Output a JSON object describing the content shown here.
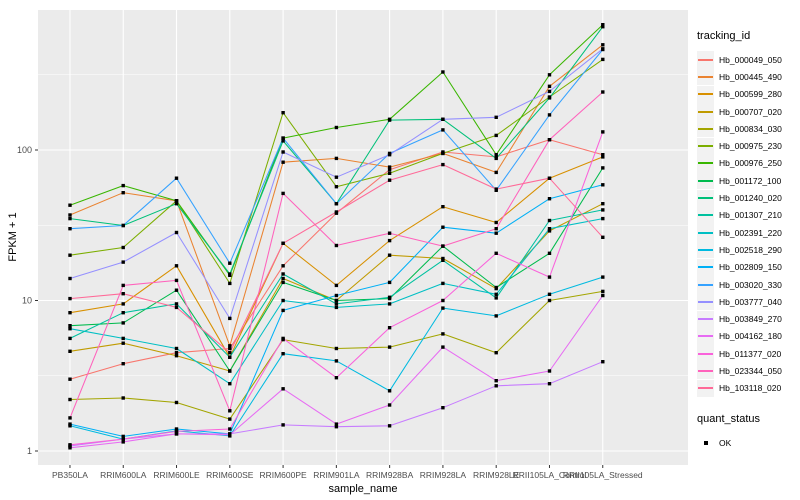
{
  "chart_data": {
    "type": "line",
    "title": "",
    "xlabel": "sample_name",
    "ylabel": "FPKM + 1",
    "y_scale": "log10",
    "y_ticks": [
      1,
      10,
      100
    ],
    "y_minor_ticks": [
      3.162,
      31.62,
      316.2
    ],
    "ylim": [
      1,
      750
    ],
    "grid": "on",
    "legend_position": "right",
    "legend_title": "tracking_id",
    "panel_bg": "#EBEBEB",
    "grid_color": "#FFFFFF",
    "axis_text_color": "#4D4D4D",
    "point_color": "#000000",
    "point_shape": "square",
    "categories": [
      "PB350LA",
      "RRIM600LA",
      "RRIM600LE",
      "RRIM600SE",
      "RRIM600PE",
      "RRIM901LA",
      "RRIM928BA",
      "RRIM928LA",
      "RRIM928LE",
      "RRII105LA_Control",
      "RRII105LA_Stressed"
    ],
    "series": [
      {
        "name": "Hb_000049_050",
        "color": "#F8766D",
        "values": [
          3.0,
          3.8,
          4.5,
          4.8,
          17,
          38,
          74,
          97,
          90,
          117,
          93
        ]
      },
      {
        "name": "Hb_000445_490",
        "color": "#EA8331",
        "values": [
          37,
          52,
          46,
          5.0,
          83,
          88,
          77,
          95,
          71,
          265,
          500
        ]
      },
      {
        "name": "Hb_000599_280",
        "color": "#D89000",
        "values": [
          8.3,
          9.5,
          17,
          4.2,
          24,
          12.6,
          25,
          42,
          33,
          65,
          90
        ]
      },
      {
        "name": "Hb_000707_020",
        "color": "#C09B00",
        "values": [
          4.6,
          5.2,
          4.3,
          3.4,
          14,
          10,
          20,
          19,
          12,
          29,
          44
        ]
      },
      {
        "name": "Hb_000834_030",
        "color": "#A3A500",
        "values": [
          2.2,
          2.25,
          2.1,
          1.63,
          5.5,
          4.8,
          4.9,
          6.0,
          4.5,
          10,
          11.5
        ]
      },
      {
        "name": "Hb_000975_230",
        "color": "#7CAE00",
        "values": [
          20,
          22.5,
          46,
          13,
          177,
          57,
          70,
          95,
          125,
          225,
          400
        ]
      },
      {
        "name": "Hb_000976_250",
        "color": "#39B600",
        "values": [
          43,
          58,
          46,
          14.7,
          120,
          141,
          160,
          330,
          93,
          316,
          680
        ]
      },
      {
        "name": "Hb_001172_100",
        "color": "#00BB4E",
        "values": [
          6.8,
          7.1,
          11.7,
          3.4,
          13.2,
          10,
          10.3,
          23,
          12.2,
          20.6,
          76
        ]
      },
      {
        "name": "Hb_001240_020",
        "color": "#00C079",
        "values": [
          35,
          31.5,
          44,
          15,
          115,
          44,
          158,
          160,
          88,
          222,
          660
        ]
      },
      {
        "name": "Hb_001307_210",
        "color": "#00C19F",
        "values": [
          5.6,
          8.3,
          9.5,
          4.2,
          15,
          9.5,
          10.5,
          18.5,
          10.4,
          34,
          40
        ]
      },
      {
        "name": "Hb_002391_220",
        "color": "#00BFC4",
        "values": [
          6.5,
          5.6,
          4.8,
          2.8,
          10,
          9.0,
          9.5,
          13.0,
          11,
          30,
          35
        ]
      },
      {
        "name": "Hb_002518_290",
        "color": "#00BAE0",
        "values": [
          1.47,
          1.2,
          1.36,
          1.26,
          4.43,
          3.97,
          2.51,
          8.9,
          7.9,
          11,
          14.3
        ]
      },
      {
        "name": "Hb_002809_150",
        "color": "#00B0F6",
        "values": [
          1.51,
          1.25,
          1.4,
          1.3,
          8.6,
          10.8,
          13.2,
          30.7,
          28,
          47.5,
          58.7
        ]
      },
      {
        "name": "Hb_003020_330",
        "color": "#35A2FF",
        "values": [
          30,
          31.5,
          65,
          17.7,
          120,
          44,
          95,
          136,
          54,
          171,
          465
        ]
      },
      {
        "name": "Hb_003777_040",
        "color": "#9590FF",
        "values": [
          14,
          18,
          28.3,
          7.6,
          97,
          66,
          93,
          160,
          165,
          245,
          470
        ]
      },
      {
        "name": "Hb_003849_270",
        "color": "#C77CFF",
        "values": [
          1.08,
          1.2,
          1.3,
          1.3,
          1.49,
          1.45,
          1.47,
          1.94,
          2.71,
          2.8,
          3.92
        ]
      },
      {
        "name": "Hb_004162_180",
        "color": "#E76BF3",
        "values": [
          1.05,
          1.15,
          1.3,
          1.28,
          2.59,
          1.51,
          2.02,
          4.9,
          2.93,
          3.4,
          10.8
        ]
      },
      {
        "name": "Hb_011377_020",
        "color": "#FA62DB",
        "values": [
          1.1,
          1.2,
          1.35,
          1.4,
          5.6,
          3.07,
          6.6,
          10,
          20.6,
          14.3,
          132
        ]
      },
      {
        "name": "Hb_023344_050",
        "color": "#FF62BC",
        "values": [
          1.66,
          12.6,
          13.6,
          1.85,
          51.5,
          23.2,
          28,
          23,
          30,
          117,
          243
        ]
      },
      {
        "name": "Hb_103118_020",
        "color": "#FF6A98",
        "values": [
          10.3,
          11.1,
          9.0,
          4.5,
          24,
          38.7,
          63,
          80,
          55,
          65,
          26.3
        ]
      }
    ],
    "quant_legend": {
      "title": "quant_status",
      "items": [
        {
          "label": "OK",
          "marker": "black-square"
        }
      ]
    }
  }
}
